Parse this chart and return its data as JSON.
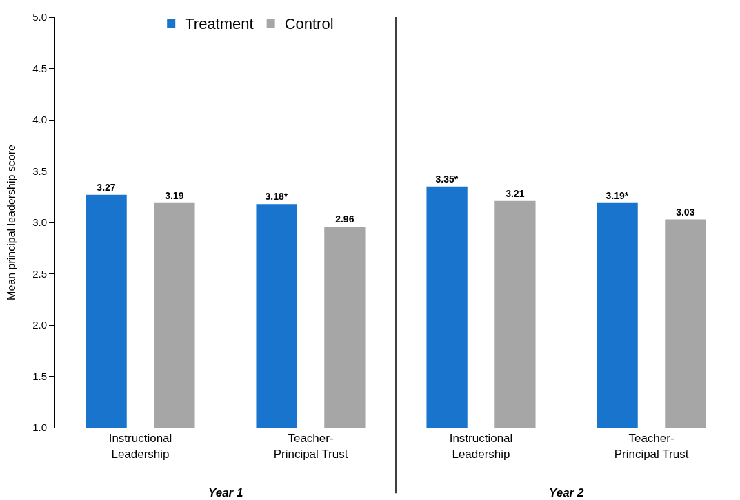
{
  "chart_data": {
    "type": "bar",
    "ylabel": "Mean principal leadership score",
    "categories": [
      "Instructional Leadership",
      "Teacher-Principal Trust",
      "Instructional Leadership",
      "Teacher-Principal Trust"
    ],
    "series": [
      {
        "name": "Treatment",
        "color": "#1874cd",
        "values": [
          3.27,
          3.18,
          3.35,
          3.19
        ],
        "value_labels": [
          "3.27",
          "3.18*",
          "3.35*",
          "3.19*"
        ]
      },
      {
        "name": "Control",
        "color": "#a6a6a6",
        "values": [
          3.19,
          2.96,
          3.21,
          3.03
        ],
        "value_labels": [
          "3.19",
          "2.96",
          "3.21",
          "3.03"
        ]
      }
    ],
    "ylim": [
      1,
      5
    ],
    "yticks": [
      {
        "value": 1,
        "label": "1.0"
      },
      {
        "value": 1.5,
        "label": "1.5"
      },
      {
        "value": 2,
        "label": "2.0"
      },
      {
        "value": 2.5,
        "label": "2.5"
      },
      {
        "value": 3,
        "label": "3.0"
      },
      {
        "value": 3.5,
        "label": "3.5"
      },
      {
        "value": 4,
        "label": "4.0"
      },
      {
        "value": 4.5,
        "label": "4.5"
      },
      {
        "value": 5,
        "label": "5.0"
      }
    ],
    "annotations": [
      "Year 1",
      "Year 2"
    ],
    "grid": false,
    "legend": "top left"
  }
}
